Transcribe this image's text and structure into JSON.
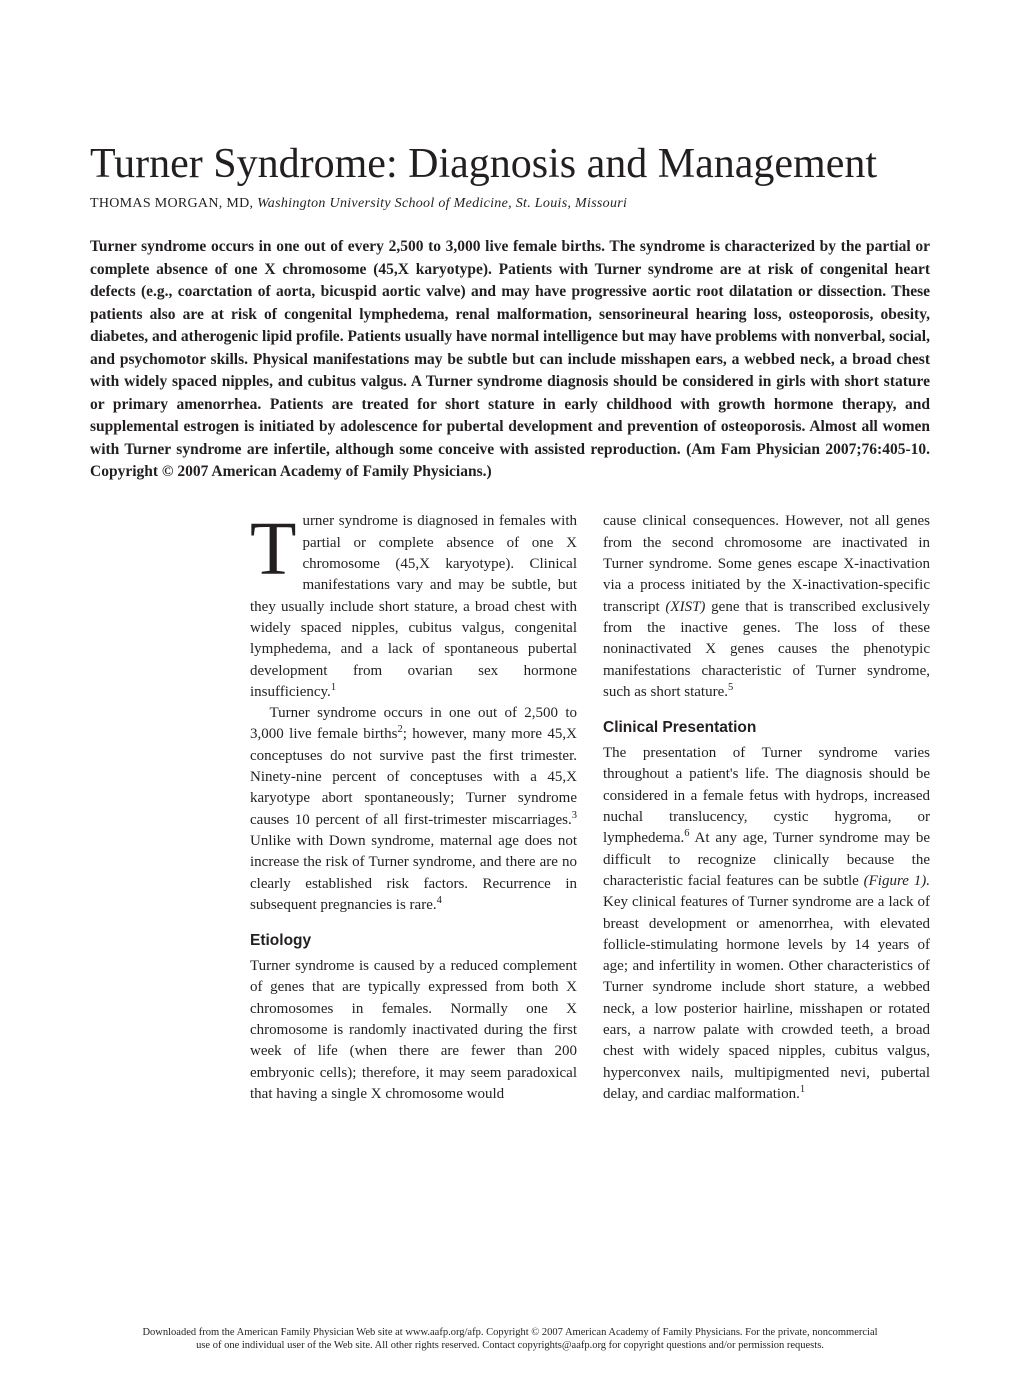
{
  "title": "Turner Syndrome: Diagnosis and Management",
  "author": {
    "name": "THOMAS MORGAN, MD,",
    "affiliation": "Washington University School of Medicine, St. Louis, Missouri"
  },
  "abstract": "Turner syndrome occurs in one out of every 2,500 to 3,000 live female births. The syndrome is characterized by the partial or complete absence of one X chromosome (45,X karyotype). Patients with Turner syndrome are at risk of congenital heart defects (e.g., coarctation of aorta, bicuspid aortic valve) and may have progressive aortic root dilatation or dissection. These patients also are at risk of congenital lymphedema, renal malformation, sensorineural hearing loss, osteoporosis, obesity, diabetes, and atherogenic lipid profile. Patients usually have normal intelligence but may have problems with nonverbal, social, and psychomotor skills. Physical manifestations may be subtle but can include misshapen ears, a webbed neck, a broad chest with widely spaced nipples, and cubitus valgus. A Turner syndrome diagnosis should be considered in girls with short stature or primary amenorrhea. Patients are treated for short stature in early childhood with growth hormone therapy, and supplemental estrogen is initiated by adolescence for pubertal development and prevention of osteoporosis. Almost all women with Turner syndrome are infertile, although some conceive with assisted reproduction. (Am Fam Physician 2007;76:405-10. Copyright © 2007 American Academy of Family Physicians.)",
  "col1": {
    "p1_dropcap": "T",
    "p1": "urner syndrome is diagnosed in females with partial or complete absence of one X chromosome (45,X karyotype). Clinical manifestations vary and may be subtle, but they usually include short stature, a broad chest with widely spaced nipples, cubitus valgus, congenital lymphedema, and a lack of spontaneous pubertal development from ovarian sex hormone insufficiency.",
    "p1_ref": "1",
    "p2a": "Turner syndrome occurs in one out of 2,500 to 3,000 live female births",
    "p2_ref1": "2",
    "p2b": "; however, many more 45,X conceptuses do not survive past the first trimester. Ninety-nine percent of conceptuses with a 45,X karyotype abort spontaneously; Turner syndrome causes 10 percent of all first-trimester miscarriages.",
    "p2_ref2": "3",
    "p2c": " Unlike with Down syndrome, maternal age does not increase the risk of Turner syndrome, and there are no clearly established risk factors. Recurrence in subsequent pregnancies is rare.",
    "p2_ref3": "4",
    "h1": "Etiology",
    "p3": "Turner syndrome is caused by a reduced complement of genes that are typically expressed from both X chromosomes in females. Normally one X chromosome is randomly inactivated during the first week of life (when there are fewer than 200 embryonic cells); therefore, it may seem paradoxical that having a single X chromosome would"
  },
  "col2": {
    "p1a": "cause clinical consequences. However, not all genes from the second chromosome are inactivated in Turner syndrome. Some genes escape X-inactivation via a process initiated by the X-inactivation-specific transcript ",
    "p1_italic": "(XIST)",
    "p1b": " gene that is transcribed exclusively from the inactive genes. The loss of these noninactivated X genes causes the phenotypic manifestations characteristic of Turner syndrome, such as short stature.",
    "p1_ref": "5",
    "h1": "Clinical Presentation",
    "p2a": "The presentation of Turner syndrome varies throughout a patient's life. The diagnosis should be considered in a female fetus with hydrops, increased nuchal translucency, cystic hygroma, or lymphedema.",
    "p2_ref1": "6",
    "p2b": " At any age, Turner syndrome may be difficult to recognize clinically because the characteristic facial features can be subtle ",
    "p2_italic": "(Figure 1).",
    "p2c": " Key clinical features of Turner syndrome are a lack of breast development or amenorrhea, with elevated follicle-stimulating hormone levels by 14 years of age; and infertility in women. Other characteristics of Turner syndrome include short stature, a webbed neck, a low posterior hairline, misshapen or rotated ears, a narrow palate with crowded teeth, a broad chest with widely spaced nipples, cubitus valgus, hyperconvex nails, multipigmented nevi, pubertal delay, and cardiac malformation.",
    "p2_ref2": "1"
  },
  "footer": {
    "line1": "Downloaded from the American Family Physician Web site at www.aafp.org/afp. Copyright © 2007 American Academy of Family Physicians. For the private, noncommercial",
    "line2": "use of one individual user of the Web site. All other rights reserved. Contact copyrights@aafp.org for copyright questions and/or permission requests."
  }
}
